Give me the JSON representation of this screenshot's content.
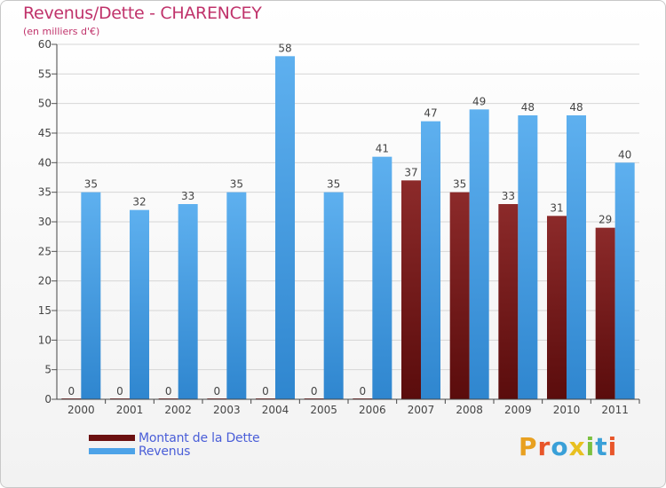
{
  "colors": {
    "title": "#c0336b",
    "debt": "#7a1a1a",
    "revenue": "#4da3e8",
    "legend_text": "#4a5ed8"
  },
  "chart_data": {
    "type": "bar",
    "title": "Revenus/Dette - CHARENCEY",
    "subtitle": "(en milliers d'€)",
    "categories": [
      "2000",
      "2001",
      "2002",
      "2003",
      "2004",
      "2005",
      "2006",
      "2007",
      "2008",
      "2009",
      "2010",
      "2011"
    ],
    "series": [
      {
        "name": "Montant de la Dette",
        "values": [
          0,
          0,
          0,
          0,
          0,
          0,
          0,
          37,
          35,
          33,
          31,
          29
        ]
      },
      {
        "name": "Revenus",
        "values": [
          35,
          32,
          33,
          35,
          58,
          35,
          41,
          47,
          49,
          48,
          48,
          40
        ]
      }
    ],
    "ylim": [
      0,
      60
    ],
    "yticks": [
      0,
      5,
      10,
      15,
      20,
      25,
      30,
      35,
      40,
      45,
      50,
      55,
      60
    ],
    "grid": true,
    "legend_position": "bottom-left"
  },
  "logo": {
    "text": "Proxiti"
  }
}
